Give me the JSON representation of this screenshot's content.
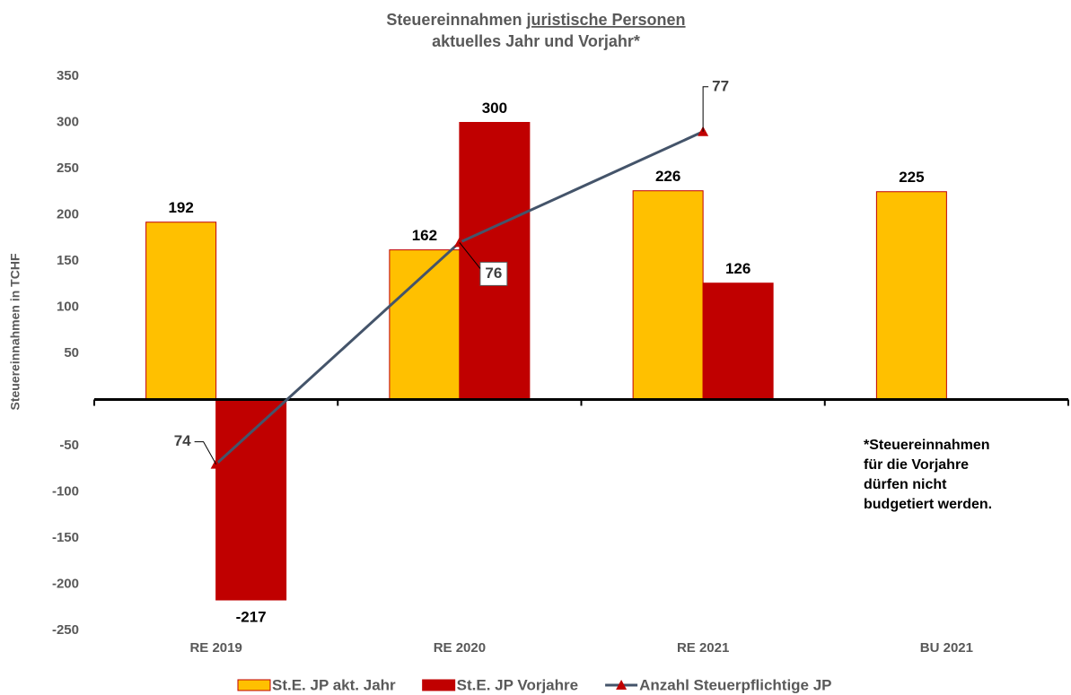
{
  "chart_data": {
    "type": "bar",
    "title": [
      "Steuereinnahmen",
      "juristische Personen"
    ],
    "subtitle": "aktuelles Jahr und Vorjahr*",
    "y_label": "Steuereinnahmen in TCHF",
    "categories": [
      "RE 2019",
      "RE 2020",
      "RE 2021",
      "BU 2021"
    ],
    "series": [
      {
        "name": "St.E. JP akt. Jahr",
        "type": "bar",
        "color": "#FFC000",
        "values": [
          192,
          162,
          226,
          225
        ]
      },
      {
        "name": "St.E. JP Vorjahre",
        "type": "bar",
        "color": "#C00000",
        "values": [
          -217,
          300,
          126,
          null
        ]
      },
      {
        "name": "Anzahl Steuerpflichtige JP",
        "type": "line",
        "axis": "y2",
        "color": "#44546A",
        "marker_color": "#C00000",
        "values": [
          74,
          76,
          77,
          null
        ]
      }
    ],
    "ylim": [
      -250,
      350
    ],
    "yticks": [
      -250,
      -200,
      -150,
      -100,
      -50,
      50,
      100,
      150,
      200,
      250,
      300,
      350
    ],
    "y2lim": [
      72.5,
      77.5
    ],
    "annotation": [
      "*Steuereinnahmen",
      "für die Vorjahre",
      "dürfen nicht",
      "budgetiert werden."
    ],
    "legend": "bottom"
  }
}
